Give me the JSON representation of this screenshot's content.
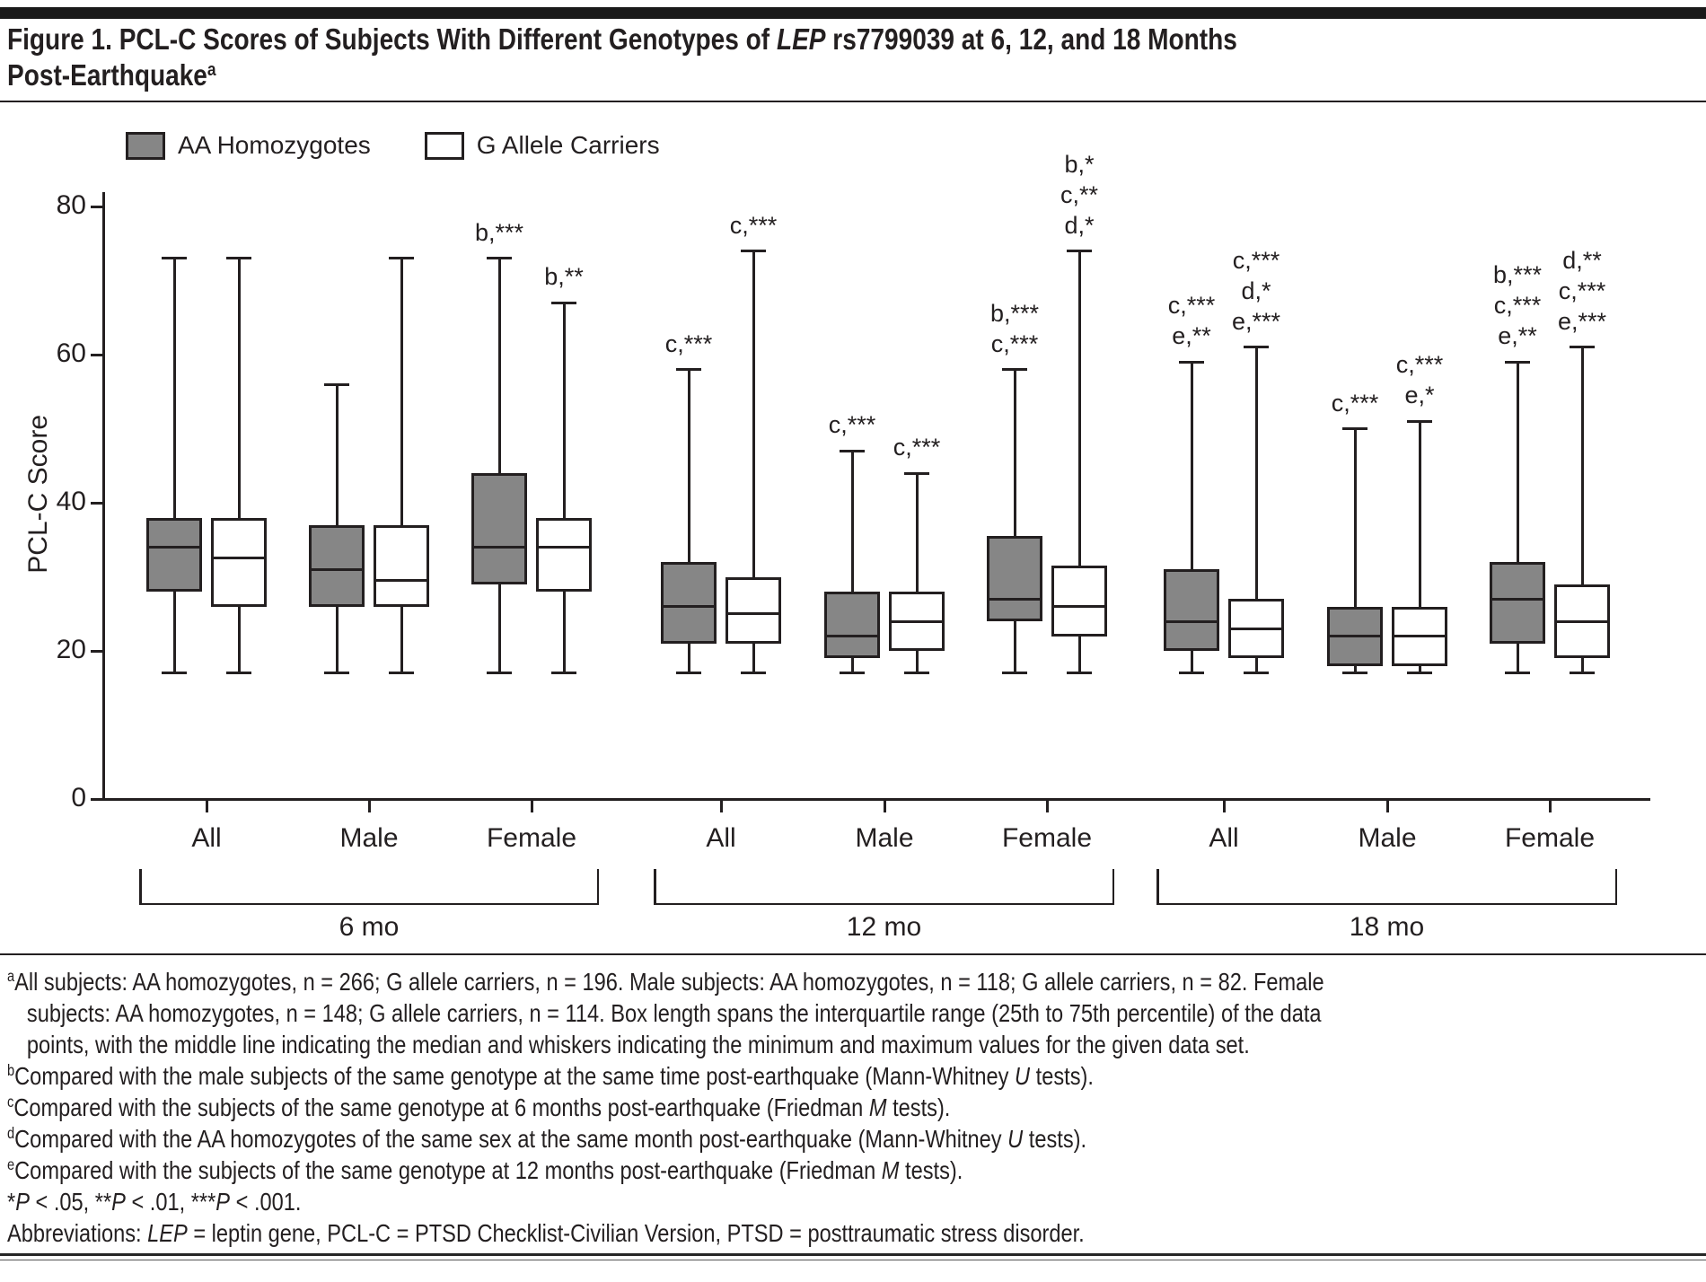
{
  "title": {
    "parts": [
      {
        "t": "Figure 1. PCL-C Scores of Subjects With Different Genotypes of "
      },
      {
        "t": "LEP",
        "i": true
      },
      {
        "t": " rs7799039 at 6, 12, and 18 Months"
      },
      {
        "br": true
      },
      {
        "t": "Post-Earthquake"
      },
      {
        "t": "a",
        "sup": true
      }
    ]
  },
  "legend": [
    {
      "label": "AA Homozygotes",
      "fill": "#868686"
    },
    {
      "label": "G Allele Carriers",
      "fill": "#ffffff"
    }
  ],
  "colors": {
    "ink": "#231f20",
    "gray_fill": "#868686",
    "white_fill": "#ffffff"
  },
  "chart_data": {
    "type": "box",
    "ylabel": "PCL-C Score",
    "ylim": [
      0,
      80
    ],
    "yticks": [
      0,
      20,
      40,
      60,
      80
    ],
    "grid": false,
    "legend_position": "top-left",
    "series_names": [
      "AA Homozygotes",
      "G Allele Carriers"
    ],
    "groups": [
      {
        "label": "6 mo",
        "categories": [
          {
            "label": "All",
            "boxes": [
              {
                "series": "AA Homozygotes",
                "min": 17,
                "q1": 28,
                "median": 34,
                "q3": 38,
                "max": 73,
                "annotations": []
              },
              {
                "series": "G Allele Carriers",
                "min": 17,
                "q1": 26,
                "median": 32.5,
                "q3": 38,
                "max": 73,
                "annotations": []
              }
            ]
          },
          {
            "label": "Male",
            "boxes": [
              {
                "series": "AA Homozygotes",
                "min": 17,
                "q1": 26,
                "median": 31,
                "q3": 37,
                "max": 56,
                "annotations": []
              },
              {
                "series": "G Allele Carriers",
                "min": 17,
                "q1": 26,
                "median": 29.5,
                "q3": 37,
                "max": 73,
                "annotations": []
              }
            ]
          },
          {
            "label": "Female",
            "boxes": [
              {
                "series": "AA Homozygotes",
                "min": 17,
                "q1": 29,
                "median": 34,
                "q3": 44,
                "max": 73,
                "annotations": [
                  "b,***"
                ]
              },
              {
                "series": "G Allele Carriers",
                "min": 17,
                "q1": 28,
                "median": 34,
                "q3": 38,
                "max": 67,
                "annotations": [
                  "b,**"
                ]
              }
            ]
          }
        ]
      },
      {
        "label": "12 mo",
        "categories": [
          {
            "label": "All",
            "boxes": [
              {
                "series": "AA Homozygotes",
                "min": 17,
                "q1": 21,
                "median": 26,
                "q3": 32,
                "max": 58,
                "annotations": [
                  "c,***"
                ]
              },
              {
                "series": "G Allele Carriers",
                "min": 17,
                "q1": 21,
                "median": 25,
                "q3": 30,
                "max": 74,
                "annotations": [
                  "c,***"
                ]
              }
            ]
          },
          {
            "label": "Male",
            "boxes": [
              {
                "series": "AA Homozygotes",
                "min": 17,
                "q1": 19,
                "median": 22,
                "q3": 28,
                "max": 47,
                "annotations": [
                  "c,***"
                ]
              },
              {
                "series": "G Allele Carriers",
                "min": 17,
                "q1": 20,
                "median": 24,
                "q3": 28,
                "max": 44,
                "annotations": [
                  "c,***"
                ]
              }
            ]
          },
          {
            "label": "Female",
            "boxes": [
              {
                "series": "AA Homozygotes",
                "min": 17,
                "q1": 24,
                "median": 27,
                "q3": 35.5,
                "max": 58,
                "annotations": [
                  "b,***",
                  "c,***"
                ]
              },
              {
                "series": "G Allele Carriers",
                "min": 17,
                "q1": 22,
                "median": 26,
                "q3": 31.5,
                "max": 74,
                "annotations": [
                  "b,*",
                  "c,**",
                  "d,*"
                ]
              }
            ]
          }
        ]
      },
      {
        "label": "18 mo",
        "categories": [
          {
            "label": "All",
            "boxes": [
              {
                "series": "AA Homozygotes",
                "min": 17,
                "q1": 20,
                "median": 24,
                "q3": 31,
                "max": 59,
                "annotations": [
                  "c,***",
                  "e,**"
                ]
              },
              {
                "series": "G Allele Carriers",
                "min": 17,
                "q1": 19,
                "median": 23,
                "q3": 27,
                "max": 61,
                "annotations": [
                  "c,***",
                  "d,*",
                  "e,***"
                ]
              }
            ]
          },
          {
            "label": "Male",
            "boxes": [
              {
                "series": "AA Homozygotes",
                "min": 17,
                "q1": 18,
                "median": 22,
                "q3": 26,
                "max": 50,
                "annotations": [
                  "c,***"
                ]
              },
              {
                "series": "G Allele Carriers",
                "min": 17,
                "q1": 18,
                "median": 22,
                "q3": 26,
                "max": 51,
                "annotations": [
                  "c,***",
                  "e,*"
                ]
              }
            ]
          },
          {
            "label": "Female",
            "boxes": [
              {
                "series": "AA Homozygotes",
                "min": 17,
                "q1": 21,
                "median": 27,
                "q3": 32,
                "max": 59,
                "annotations": [
                  "b,***",
                  "c,***",
                  "e,**"
                ]
              },
              {
                "series": "G Allele Carriers",
                "min": 17,
                "q1": 19,
                "median": 24,
                "q3": 29,
                "max": 61,
                "annotations": [
                  "d,**",
                  "c,***",
                  "e,***"
                ]
              }
            ]
          }
        ]
      }
    ]
  },
  "footnotes": [
    {
      "sup": "a",
      "parts": [
        {
          "t": "All subjects: AA homozygotes, n = 266; G allele carriers, n = 196. Male subjects: AA homozygotes, n = 118; G allele carriers, n = 82. Female"
        },
        {
          "br": true
        },
        {
          "t": "subjects: AA homozygotes, n = 148; G allele carriers, n = 114. Box length spans the interquartile range (25th to 75th percentile) of the data"
        },
        {
          "br": true
        },
        {
          "t": "points, with the middle line indicating the median and whiskers indicating the minimum and maximum values for the given data set."
        }
      ]
    },
    {
      "sup": "b",
      "parts": [
        {
          "t": "Compared with the male subjects of the same genotype at the same time post-earthquake (Mann-Whitney "
        },
        {
          "t": "U",
          "i": true
        },
        {
          "t": " tests)."
        }
      ]
    },
    {
      "sup": "c",
      "parts": [
        {
          "t": "Compared with the subjects of the same genotype at 6 months post-earthquake (Friedman "
        },
        {
          "t": "M",
          "i": true
        },
        {
          "t": " tests)."
        }
      ]
    },
    {
      "sup": "d",
      "parts": [
        {
          "t": "Compared with the AA homozygotes of the same sex at the same month post-earthquake (Mann-Whitney "
        },
        {
          "t": "U",
          "i": true
        },
        {
          "t": " tests)."
        }
      ]
    },
    {
      "sup": "e",
      "parts": [
        {
          "t": "Compared with the subjects of the same genotype at 12 months post-earthquake (Friedman "
        },
        {
          "t": "M",
          "i": true
        },
        {
          "t": " tests)."
        }
      ]
    },
    {
      "sup": "",
      "parts": [
        {
          "t": "*"
        },
        {
          "t": "P",
          "i": true
        },
        {
          "t": " < .05, **"
        },
        {
          "t": "P",
          "i": true
        },
        {
          "t": " < .01, ***"
        },
        {
          "t": "P",
          "i": true
        },
        {
          "t": " < .001."
        }
      ]
    },
    {
      "sup": "",
      "parts": [
        {
          "t": "Abbreviations: "
        },
        {
          "t": "LEP",
          "i": true
        },
        {
          "t": " = leptin gene, PCL-C = PTSD Checklist-Civilian Version, PTSD = posttraumatic stress disorder."
        }
      ]
    }
  ]
}
